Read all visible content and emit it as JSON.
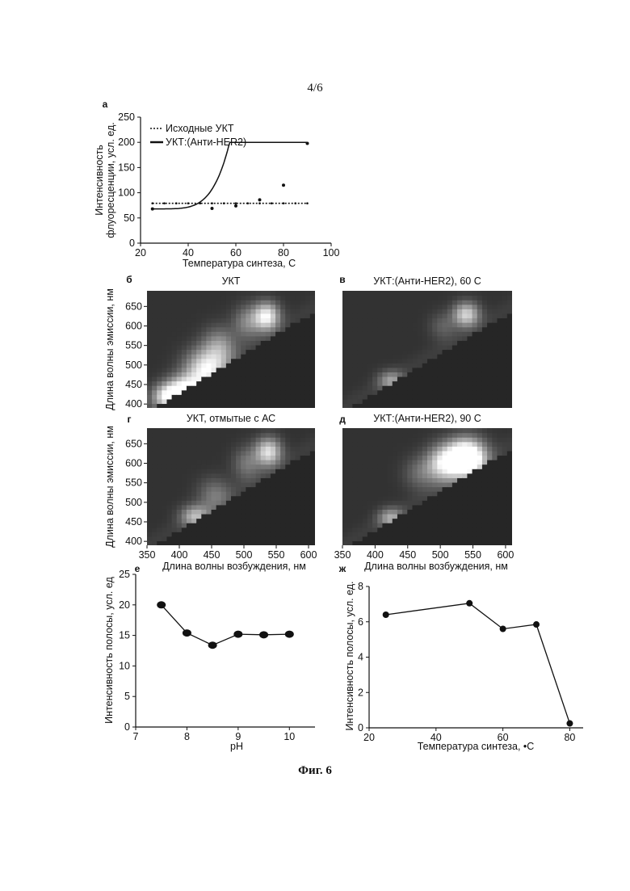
{
  "page_number": "4/6",
  "figure_caption": "Фиг. 6",
  "chart_data": [
    {
      "panel": "а",
      "type": "line",
      "xlabel": "Температура синтеза, С",
      "ylabel": "Интенсивность флуоресценции, усл. ед.",
      "xlim": [
        20,
        100
      ],
      "ylim": [
        0,
        250
      ],
      "xticks": [
        20,
        40,
        60,
        80,
        100
      ],
      "yticks": [
        0,
        50,
        100,
        150,
        200,
        250
      ],
      "legend_position": "top-left",
      "series": [
        {
          "name": "Исходные УКТ",
          "style": "dotted",
          "x": [
            25,
            30,
            35,
            40,
            45,
            50,
            55,
            60,
            65,
            70,
            75,
            80,
            85,
            90
          ],
          "y": [
            79,
            79,
            79,
            79,
            79,
            79,
            79,
            79,
            79,
            79,
            79,
            79,
            79,
            79
          ]
        },
        {
          "name": "УКТ:(Анти-HER2)",
          "style": "solid-dots",
          "x": [
            25,
            50,
            60,
            70,
            80,
            90
          ],
          "y": [
            68,
            69,
            74,
            86,
            115,
            198
          ]
        }
      ]
    },
    {
      "panel": "б",
      "type": "heatmap",
      "title": "УКТ",
      "ylabel": "Длина волны эмиссии, нм",
      "xticks": [],
      "yticks": [
        400,
        450,
        500,
        550,
        600,
        650
      ],
      "xlim": [
        350,
        610
      ],
      "ylim": [
        390,
        690
      ],
      "hotspots": [
        {
          "x": 385,
          "y": 420,
          "intensity": 0.8,
          "sx": 18,
          "sy": 22
        },
        {
          "x": 410,
          "y": 440,
          "intensity": 0.7,
          "sx": 20,
          "sy": 25
        },
        {
          "x": 440,
          "y": 490,
          "intensity": 0.75,
          "sx": 22,
          "sy": 35
        },
        {
          "x": 462,
          "y": 545,
          "intensity": 0.45,
          "sx": 18,
          "sy": 35
        },
        {
          "x": 535,
          "y": 625,
          "intensity": 0.85,
          "sx": 14,
          "sy": 25
        },
        {
          "x": 505,
          "y": 610,
          "intensity": 0.35,
          "sx": 15,
          "sy": 30
        }
      ]
    },
    {
      "panel": "в",
      "type": "heatmap",
      "title": "УКТ:(Анти-HER2), 60 С",
      "xticks": [],
      "yticks": [],
      "xlim": [
        350,
        610
      ],
      "ylim": [
        390,
        690
      ],
      "hotspots": [
        {
          "x": 425,
          "y": 460,
          "intensity": 0.45,
          "sx": 14,
          "sy": 18
        },
        {
          "x": 540,
          "y": 630,
          "intensity": 0.7,
          "sx": 14,
          "sy": 22
        },
        {
          "x": 505,
          "y": 600,
          "intensity": 0.2,
          "sx": 15,
          "sy": 25
        }
      ]
    },
    {
      "panel": "г",
      "type": "heatmap",
      "title": "УКТ, отмытые с АС",
      "ylabel": "Длина волны эмиссии, нм",
      "xticks": [
        350,
        400,
        450,
        500,
        550,
        600
      ],
      "yticks": [
        400,
        450,
        500,
        550,
        600,
        650
      ],
      "xlim": [
        350,
        610
      ],
      "ylim": [
        390,
        690
      ],
      "hotspots": [
        {
          "x": 425,
          "y": 465,
          "intensity": 0.55,
          "sx": 16,
          "sy": 20
        },
        {
          "x": 455,
          "y": 520,
          "intensity": 0.3,
          "sx": 18,
          "sy": 30
        },
        {
          "x": 538,
          "y": 630,
          "intensity": 0.75,
          "sx": 14,
          "sy": 25
        },
        {
          "x": 505,
          "y": 600,
          "intensity": 0.3,
          "sx": 15,
          "sy": 30
        }
      ]
    },
    {
      "panel": "д",
      "type": "heatmap",
      "title": "УКТ:(Анти-HER2), 90 С",
      "xlabel": "Длина волны возбуждения, нм",
      "xticks": [
        350,
        400,
        450,
        500,
        550,
        600
      ],
      "yticks": [],
      "xlim": [
        350,
        610
      ],
      "ylim": [
        390,
        690
      ],
      "hotspots": [
        {
          "x": 425,
          "y": 460,
          "intensity": 0.5,
          "sx": 14,
          "sy": 18
        },
        {
          "x": 540,
          "y": 615,
          "intensity": 1.4,
          "sx": 20,
          "sy": 32
        },
        {
          "x": 505,
          "y": 600,
          "intensity": 0.7,
          "sx": 18,
          "sy": 32
        },
        {
          "x": 470,
          "y": 575,
          "intensity": 0.25,
          "sx": 18,
          "sy": 30
        }
      ]
    },
    {
      "panel": "е",
      "type": "line",
      "xlabel": "pH",
      "ylabel": "Интенсивность полосы, усл. ед",
      "xlim": [
        7,
        10.5
      ],
      "ylim": [
        0,
        25
      ],
      "xticks": [
        7,
        8,
        9,
        10
      ],
      "yticks": [
        0,
        5,
        10,
        15,
        20,
        25
      ],
      "series": [
        {
          "x": [
            7.5,
            8,
            8.5,
            9,
            9.5,
            10
          ],
          "y": [
            20.0,
            15.4,
            13.4,
            15.2,
            15.1,
            15.2
          ]
        }
      ]
    },
    {
      "panel": "ж",
      "type": "line",
      "xlabel": "Температура синтеза, •С",
      "ylabel": "Интенсивность полосы, усл. ед.",
      "xlim": [
        20,
        84
      ],
      "ylim": [
        0,
        8
      ],
      "xticks": [
        20,
        40,
        60,
        80
      ],
      "yticks": [
        0,
        2,
        4,
        6,
        8
      ],
      "series": [
        {
          "x": [
            25,
            50,
            60,
            70,
            80
          ],
          "y": [
            6.4,
            7.05,
            5.6,
            5.85,
            0.25
          ]
        }
      ]
    }
  ]
}
